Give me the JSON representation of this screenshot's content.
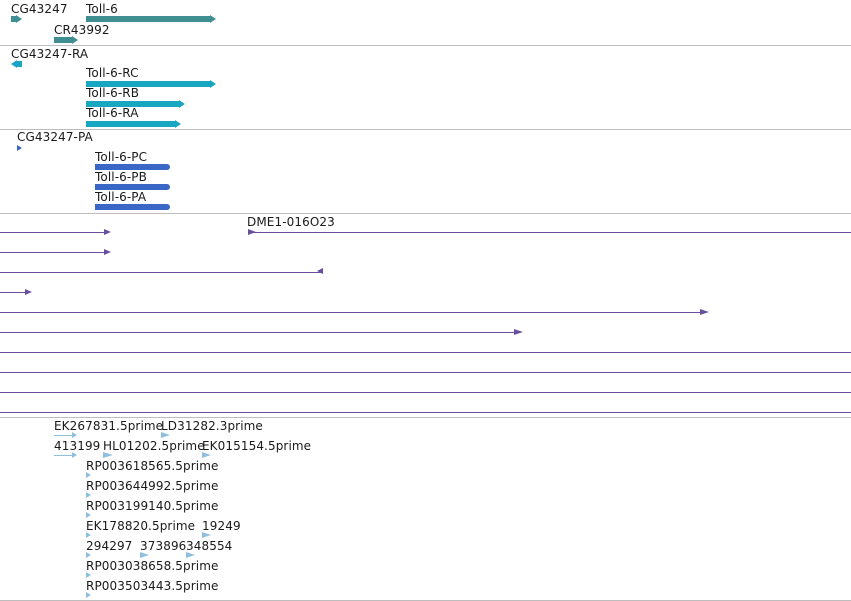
{
  "colors": {
    "gene": "#3f8f92",
    "transcript_ra": "#1aa4c6",
    "mrna": "#17a7c0",
    "protein": "#3a66c5",
    "alignment": "#6a4fa0",
    "est": "#8fbfdf",
    "divider": "#bdbdbd"
  },
  "tracks": {
    "genes": {
      "labels": [
        "CG43247",
        "Toll-6",
        "CR43992"
      ],
      "icons": [
        "gene-arrow-icon",
        "gene-arrow-icon",
        "gene-arrow-icon"
      ]
    },
    "transcripts": {
      "labels": [
        "CG43247-RA",
        "Toll-6-RC",
        "Toll-6-RB",
        "Toll-6-RA"
      ]
    },
    "proteins": {
      "labels": [
        "CG43247-PA",
        "Toll-6-PC",
        "Toll-6-PB",
        "Toll-6-PA"
      ]
    },
    "alignments": {
      "labels": [
        "DME1-016O23"
      ]
    },
    "ests": {
      "labels": [
        "EK267831.5prime",
        "LD31282.3prime",
        "413199",
        "HL01202.5prime",
        "EK015154.5prime",
        "RP003618565.5prime",
        "RP003644992.5prime",
        "RP003199140.5prime",
        "EK178820.5prime",
        "19249",
        "294297",
        "373896",
        "348554",
        "RP003038658.5prime",
        "RP003503443.5prime"
      ]
    }
  }
}
